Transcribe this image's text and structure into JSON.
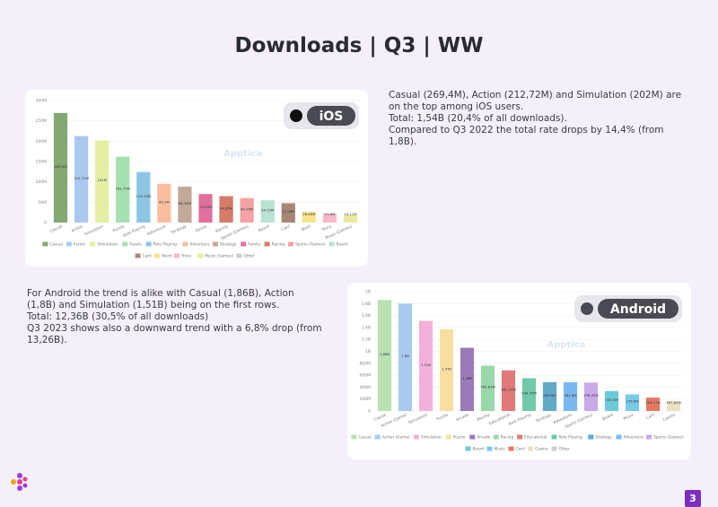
{
  "title": "Downloads | Q3 | WW",
  "notes_ios": [
    "Casual (269,4M), Action (212,72M) and Simulation (202M) are on the top among iOS users.",
    "Total: 1,54B (20,4% of all downloads).",
    "Compared to Q3 2022 the total rate drops by 14,4% (from 1,8B)."
  ],
  "notes_android": [
    "For Android the trend is alike with Casual (1,86B), Action (1,8B) and Simulation (1,51B) being on the first rows.",
    "Total: 12,36B (30,5% of all downloads)",
    "Q3 2023 shows also a downward trend with a 6,8% drop (from 13,26B)."
  ],
  "page_number": 3,
  "chart_data": [
    {
      "type": "bar",
      "badge": "iOS",
      "watermark": "Apptica",
      "categories": [
        "Casual",
        "Action",
        "Simulation",
        "Puzzle",
        "Role Playing",
        "Adventure",
        "Strategy",
        "Family",
        "Racing",
        "Sports (Games)",
        "Board",
        "Card",
        "Word",
        "Trivia",
        "Music (Games)"
      ],
      "values": [
        269.4,
        212.72,
        202,
        161.75,
        124.15,
        95.3,
        88.36,
        70.03,
        64.85,
        60.26,
        54.72,
        47.58,
        26.66,
        21.8,
        19.11
      ],
      "value_labels": [
        "269.4M",
        "212.72M",
        "202M",
        "161.75M",
        "124.15M",
        "95.3M",
        "88.36M",
        "70.03M",
        "64.85M",
        "60.26M",
        "54.72M",
        "47.58M",
        "26.66M",
        "21.8M",
        "19.11M"
      ],
      "colors": [
        "#84a873",
        "#a9c9f0",
        "#e4efa3",
        "#a6dfb0",
        "#8cc6e6",
        "#f7bea0",
        "#c2a998",
        "#e0709c",
        "#d67a6a",
        "#f2a3a3",
        "#b8e2d2",
        "#a98777",
        "#f6e58f",
        "#f7b9c9",
        "#e9e9a4"
      ],
      "legend_extra": [
        {
          "name": "Other",
          "color": "#cfcfcf"
        }
      ],
      "ylim": [
        0,
        300
      ],
      "yticks": [
        0,
        {
          "value": 50,
          "label": "50M"
        },
        {
          "value": 100,
          "label": "100M"
        },
        {
          "value": 150,
          "label": "150M"
        },
        {
          "value": 200,
          "label": "200M"
        },
        {
          "value": 250,
          "label": "250M"
        },
        {
          "value": 300,
          "label": "300M"
        }
      ],
      "grid": true
    },
    {
      "type": "bar",
      "badge": "Android",
      "watermark": "Apptica",
      "categories": [
        "Casual",
        "Action (Game)",
        "Simulation",
        "Puzzle",
        "Arcade",
        "Racing",
        "Educational",
        "Role Playing",
        "Strategy",
        "Adventure",
        "Sports (Games)",
        "Board",
        "Music",
        "Card",
        "Casino"
      ],
      "values": [
        1860,
        1800,
        1510,
        1370,
        1060,
        760.81,
        681.37,
        549.75,
        483.9,
        482.8,
        476.35,
        333.9,
        278.6,
        224.71,
        167.81
      ],
      "value_labels": [
        "1.86B",
        "1.8B",
        "1.51B",
        "1.37B",
        "1.06B",
        "760.81M",
        "681.37M",
        "549.75M",
        "483.9M",
        "482.8M",
        "476.35M",
        "333.9M",
        "278.6M",
        "224.71M",
        "167.81M"
      ],
      "colors": [
        "#b9e1b1",
        "#a9c9f0",
        "#f1b1d8",
        "#f8dfa0",
        "#9a7ab8",
        "#9ad8a9",
        "#e07a7a",
        "#72c9a9",
        "#62a9c9",
        "#7ab9f0",
        "#c9a9e8",
        "#6ec9d9",
        "#7ac9e9",
        "#e27a62",
        "#e9e1c1"
      ],
      "legend_extra": [
        {
          "name": "Other",
          "color": "#cfcfcf"
        }
      ],
      "ylim": [
        0,
        2000
      ],
      "yticks": [
        0,
        {
          "value": 200,
          "label": "200M"
        },
        {
          "value": 400,
          "label": "400M"
        },
        {
          "value": 600,
          "label": "600M"
        },
        {
          "value": 800,
          "label": "800M"
        },
        {
          "value": 1000,
          "label": "1B"
        },
        {
          "value": 1200,
          "label": "1.2B"
        },
        {
          "value": 1400,
          "label": "1.4B"
        },
        {
          "value": 1600,
          "label": "1.6B"
        },
        {
          "value": 1800,
          "label": "1.8B"
        },
        {
          "value": 2000,
          "label": "2B"
        }
      ],
      "grid": true
    }
  ]
}
